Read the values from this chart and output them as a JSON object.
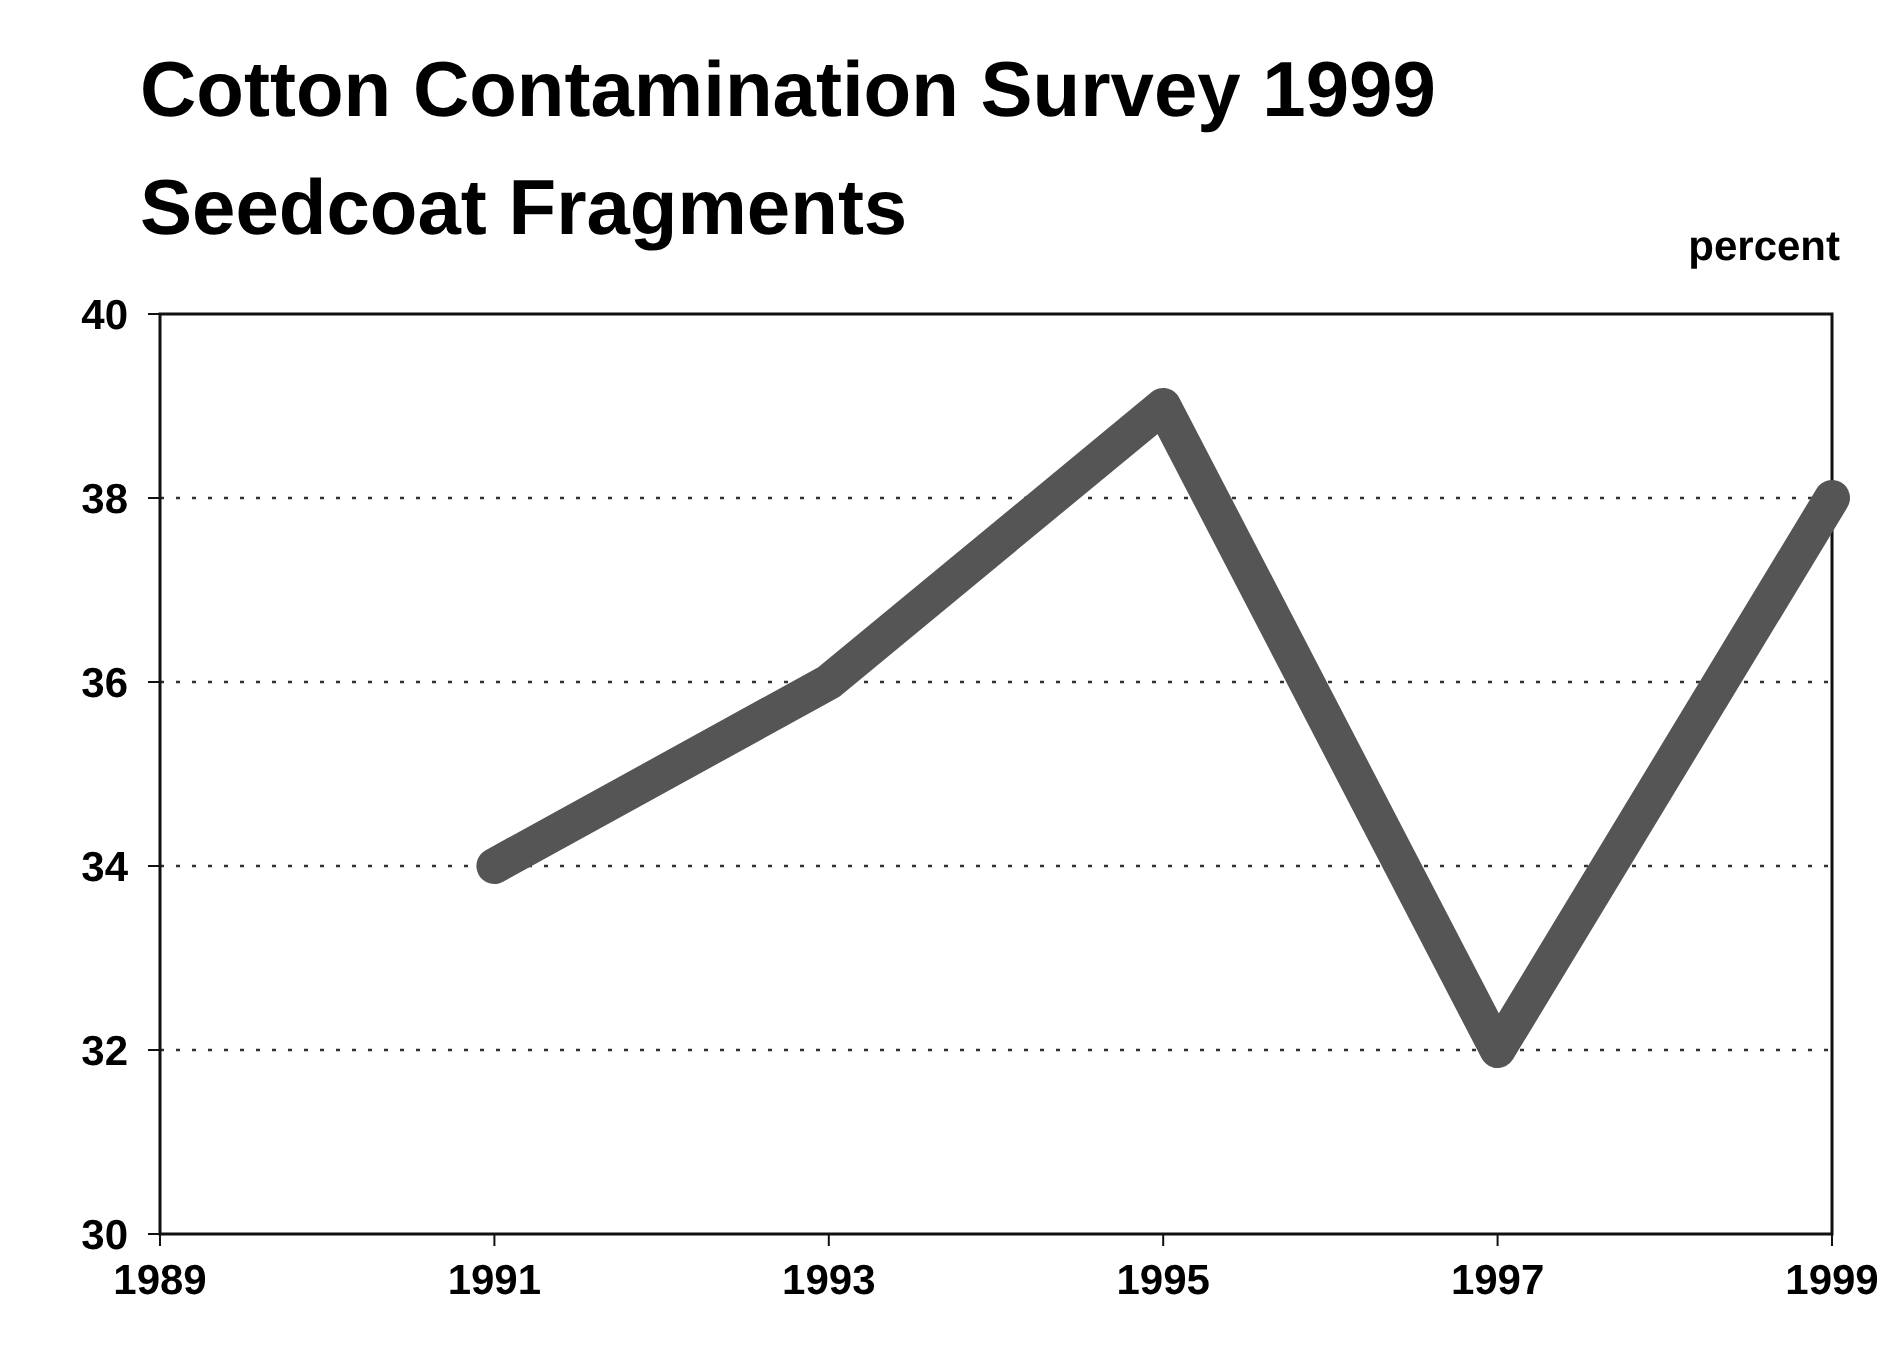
{
  "chart_data": {
    "type": "line",
    "title": "Cotton Contamination Survey 1999",
    "subtitle": "Seedcoat Fragments",
    "ylabel": "percent",
    "x": [
      1991,
      1993,
      1995,
      1997,
      1999
    ],
    "series": [
      {
        "color": "#555555",
        "values": [
          34,
          36,
          39,
          32,
          38
        ]
      }
    ],
    "xlim": [
      1989,
      1999
    ],
    "xticks": [
      1989,
      1991,
      1993,
      1995,
      1997,
      1999
    ],
    "ylim": [
      30,
      40
    ],
    "yticks": [
      30,
      32,
      34,
      36,
      38,
      40
    ],
    "grid": "y",
    "line_style": "solid"
  }
}
